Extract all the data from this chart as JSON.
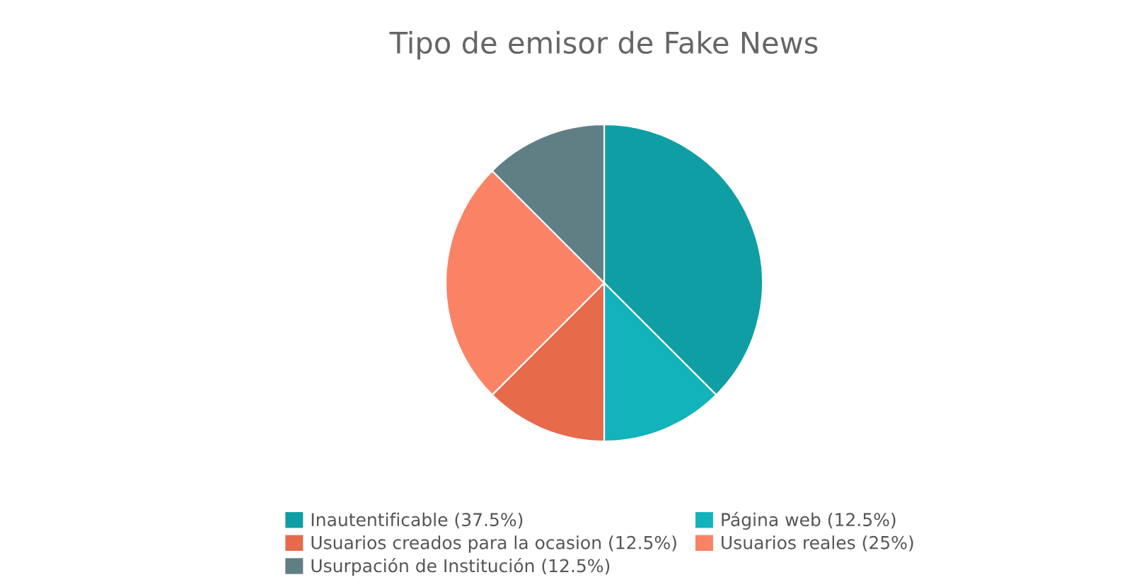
{
  "chart_data": {
    "type": "pie",
    "title": "Tipo de emisor de Fake News",
    "categories": [
      "Inautentificable (37.5%)",
      "Página web (12.5%)",
      "Usuarios creados para la ocasion (12.5%)",
      "Usuarios reales (25%)",
      "Usurpación de Institución (12.5%)"
    ],
    "values": [
      37.5,
      12.5,
      12.5,
      25,
      12.5
    ],
    "colors": [
      "#0f9ea3",
      "#12b3bb",
      "#e76a4b",
      "#fa8365",
      "#607f84"
    ],
    "legend": "bottom"
  }
}
